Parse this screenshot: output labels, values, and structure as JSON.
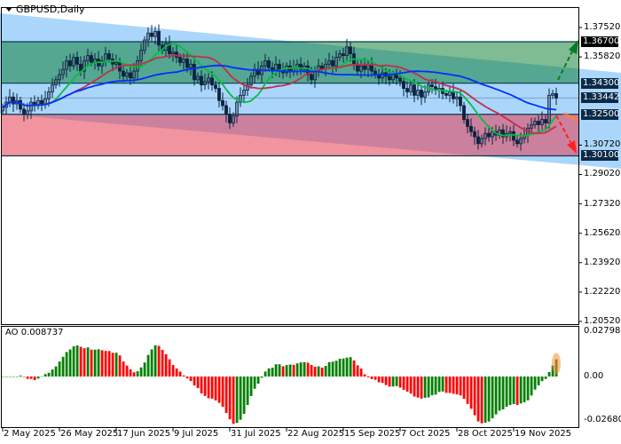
{
  "header": {
    "symbol_label": "GBPUSD,Daily"
  },
  "price_axis": {
    "ticks": [
      "1.37520",
      "1.35820",
      "1.30720",
      "1.29020",
      "1.27320",
      "1.25620",
      "1.23920",
      "1.22220",
      "1.20520"
    ],
    "tick_values": [
      1.3752,
      1.3582,
      1.3072,
      1.2902,
      1.2732,
      1.2562,
      1.2392,
      1.2222,
      1.2052
    ],
    "levels": [
      {
        "label": "1.36700",
        "value": 1.367,
        "box_color": "#000000"
      },
      {
        "label": "1.34300",
        "value": 1.343,
        "box_color": "#0b2a48"
      },
      {
        "label": "1.33442",
        "value": 1.33442,
        "box_color": "#0b2a48"
      },
      {
        "label": "1.32500",
        "value": 1.325,
        "box_color": "#0b2a48"
      },
      {
        "label": "1.30100",
        "value": 1.301,
        "box_color": "#0b2a48"
      }
    ]
  },
  "zones": {
    "upper": {
      "from": 1.343,
      "to": 1.367,
      "color": "#55ac85"
    },
    "middle": {
      "from": 1.325,
      "to": 1.343,
      "color": "#aad6fb"
    },
    "lower": {
      "from": 1.301,
      "to": 1.325,
      "color": "#ff9f9f"
    }
  },
  "ao": {
    "label": "AO 0.008737",
    "ticks": [
      "0.027987",
      "0.00",
      "-0.026803"
    ],
    "tick_values": [
      0.027987,
      0,
      -0.026803
    ],
    "up_color": "#008000",
    "down_color": "#ff0000"
  },
  "time_axis": {
    "labels": [
      "2 May 2025",
      "26 May 2025",
      "17 Jun 2025",
      "9 Jul 2025",
      "31 Jul 2025",
      "22 Aug 2025",
      "15 Sep 2025",
      "7 Oct 2025",
      "28 Oct 2025",
      "19 Nov 2025"
    ],
    "bar_index": [
      0,
      16,
      32,
      48,
      64,
      80,
      96,
      112,
      128,
      144
    ]
  },
  "chart_data": {
    "type": "candlestick",
    "title": "GBPUSD,Daily",
    "ylim": [
      1.2052,
      1.3752
    ],
    "last_price": 1.33442,
    "closes": [
      1.329,
      1.332,
      1.335,
      1.331,
      1.333,
      1.328,
      1.325,
      1.327,
      1.332,
      1.33,
      1.333,
      1.331,
      1.334,
      1.338,
      1.342,
      1.345,
      1.348,
      1.351,
      1.356,
      1.353,
      1.358,
      1.354,
      1.35,
      1.356,
      1.359,
      1.355,
      1.357,
      1.353,
      1.356,
      1.36,
      1.357,
      1.354,
      1.355,
      1.35,
      1.347,
      1.349,
      1.346,
      1.35,
      1.356,
      1.362,
      1.368,
      1.372,
      1.37,
      1.373,
      1.365,
      1.362,
      1.366,
      1.36,
      1.361,
      1.358,
      1.355,
      1.357,
      1.352,
      1.354,
      1.345,
      1.347,
      1.342,
      1.344,
      1.346,
      1.342,
      1.34,
      1.333,
      1.33,
      1.325,
      1.32,
      1.324,
      1.332,
      1.336,
      1.339,
      1.342,
      1.347,
      1.351,
      1.348,
      1.353,
      1.356,
      1.352,
      1.35,
      1.354,
      1.351,
      1.349,
      1.353,
      1.35,
      1.352,
      1.354,
      1.351,
      1.353,
      1.348,
      1.345,
      1.35,
      1.353,
      1.351,
      1.354,
      1.356,
      1.353,
      1.358,
      1.36,
      1.359,
      1.364,
      1.36,
      1.354,
      1.35,
      1.353,
      1.351,
      1.354,
      1.35,
      1.348,
      1.346,
      1.349,
      1.347,
      1.345,
      1.348,
      1.346,
      1.344,
      1.34,
      1.338,
      1.342,
      1.336,
      1.339,
      1.335,
      1.338,
      1.342,
      1.341,
      1.339,
      1.34,
      1.337,
      1.336,
      1.338,
      1.334,
      1.335,
      1.33,
      1.322,
      1.318,
      1.315,
      1.312,
      1.308,
      1.311,
      1.314,
      1.312,
      1.315,
      1.313,
      1.316,
      1.312,
      1.314,
      1.315,
      1.31,
      1.308,
      1.311,
      1.313,
      1.317,
      1.319,
      1.321,
      1.319,
      1.322,
      1.32,
      1.336,
      1.337,
      1.3344
    ],
    "moving_averages": [
      {
        "period": 10,
        "color": "#00c040"
      },
      {
        "period": 21,
        "color": "#c0304a"
      },
      {
        "period": 50,
        "color": "#0030ff"
      }
    ]
  }
}
